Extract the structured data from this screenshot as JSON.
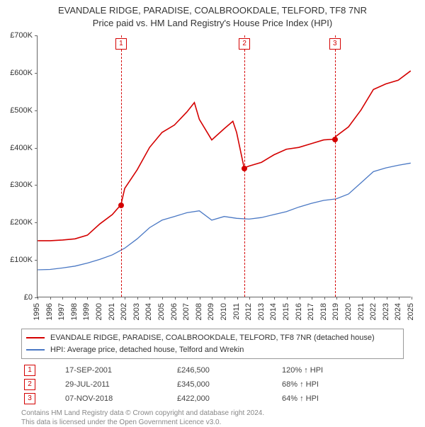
{
  "title_line1": "EVANDALE RIDGE, PARADISE, COALBROOKDALE, TELFORD, TF8 7NR",
  "title_line2": "Price paid vs. HM Land Registry's House Price Index (HPI)",
  "chart": {
    "type": "line",
    "background_color": "#ffffff",
    "x_min": 1995,
    "x_max": 2025,
    "y_min": 0,
    "y_max": 700000,
    "y_tick_step": 100000,
    "y_tick_labels": [
      "£0",
      "£100K",
      "£200K",
      "£300K",
      "£400K",
      "£500K",
      "£600K",
      "£700K"
    ],
    "x_ticks": [
      1995,
      1996,
      1997,
      1998,
      1999,
      2000,
      2001,
      2002,
      2003,
      2004,
      2005,
      2006,
      2007,
      2008,
      2009,
      2010,
      2011,
      2012,
      2013,
      2014,
      2015,
      2016,
      2017,
      2018,
      2019,
      2020,
      2021,
      2022,
      2023,
      2024,
      2025
    ],
    "axis_color": "#666666",
    "label_fontsize": 11,
    "title_fontsize": 13,
    "series": [
      {
        "name": "price_paid",
        "label": "EVANDALE RIDGE, PARADISE, COALBROOKDALE, TELFORD, TF8 7NR (detached house)",
        "color": "#d40000",
        "line_width": 1.6,
        "x": [
          1995,
          1996,
          1997,
          1998,
          1999,
          2000,
          2001,
          2001.7,
          2002,
          2003,
          2004,
          2005,
          2006,
          2007,
          2007.6,
          2008,
          2009,
          2010,
          2010.7,
          2011,
          2011.6,
          2012,
          2013,
          2014,
          2015,
          2016,
          2017,
          2018,
          2018.85,
          2019,
          2020,
          2021,
          2022,
          2023,
          2024,
          2025
        ],
        "y": [
          150000,
          150000,
          152000,
          155000,
          165000,
          195000,
          220000,
          246500,
          290000,
          340000,
          400000,
          440000,
          460000,
          495000,
          520000,
          475000,
          420000,
          450000,
          470000,
          440000,
          345000,
          350000,
          360000,
          380000,
          395000,
          400000,
          410000,
          420000,
          422000,
          430000,
          455000,
          500000,
          555000,
          570000,
          580000,
          605000
        ]
      },
      {
        "name": "hpi",
        "label": "HPI: Average price, detached house, Telford and Wrekin",
        "color": "#4a78c4",
        "line_width": 1.3,
        "x": [
          1995,
          1996,
          1997,
          1998,
          1999,
          2000,
          2001,
          2002,
          2003,
          2004,
          2005,
          2006,
          2007,
          2008,
          2009,
          2010,
          2011,
          2012,
          2013,
          2014,
          2015,
          2016,
          2017,
          2018,
          2019,
          2020,
          2021,
          2022,
          2023,
          2024,
          2025
        ],
        "y": [
          72000,
          73000,
          77000,
          82000,
          90000,
          100000,
          112000,
          130000,
          155000,
          185000,
          205000,
          215000,
          225000,
          230000,
          205000,
          215000,
          210000,
          208000,
          212000,
          220000,
          228000,
          240000,
          250000,
          258000,
          262000,
          275000,
          305000,
          335000,
          345000,
          352000,
          358000
        ]
      }
    ],
    "markers": [
      {
        "n": "1",
        "x": 2001.7,
        "y": 246500,
        "color": "#d40000"
      },
      {
        "n": "2",
        "x": 2011.6,
        "y": 345000,
        "color": "#d40000"
      },
      {
        "n": "3",
        "x": 2018.85,
        "y": 422000,
        "color": "#d40000"
      }
    ]
  },
  "legend": {
    "border_color": "#999999",
    "fontsize": 11
  },
  "marker_rows": [
    {
      "n": "1",
      "date": "17-SEP-2001",
      "price": "£246,500",
      "pct": "120% ↑ HPI"
    },
    {
      "n": "2",
      "date": "29-JUL-2011",
      "price": "£345,000",
      "pct": "68% ↑ HPI"
    },
    {
      "n": "3",
      "date": "07-NOV-2018",
      "price": "£422,000",
      "pct": "64% ↑ HPI"
    }
  ],
  "attribution_line1": "Contains HM Land Registry data © Crown copyright and database right 2024.",
  "attribution_line2": "This data is licensed under the Open Government Licence v3.0."
}
